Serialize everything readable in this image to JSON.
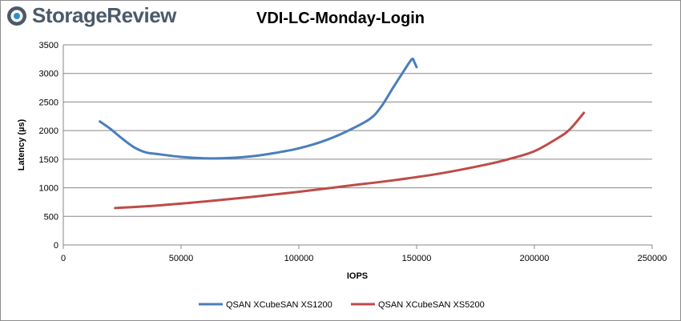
{
  "brand": {
    "name": "StorageReview"
  },
  "chart_data": {
    "type": "line",
    "title": "VDI-LC-Monday-Login",
    "xlabel": "IOPS",
    "ylabel": "Latency (µs)",
    "xlim": [
      0,
      250000
    ],
    "ylim": [
      0,
      3500
    ],
    "x_ticks": [
      "0",
      "50000",
      "100000",
      "150000",
      "200000",
      "250000"
    ],
    "y_ticks": [
      "0",
      "500",
      "1000",
      "1500",
      "2000",
      "2500",
      "3000",
      "3500"
    ],
    "grid": "horizontal",
    "legend_position": "bottom",
    "series": [
      {
        "name": "QSAN XCubeSAN XS1200",
        "color": "#4a7ebb",
        "x": [
          15500,
          20000,
          25000,
          30000,
          35000,
          40000,
          50000,
          60000,
          70000,
          80000,
          90000,
          100000,
          110000,
          120000,
          130000,
          135000,
          140000,
          145000,
          148000,
          149000,
          150000
        ],
        "y": [
          2160,
          2030,
          1860,
          1710,
          1620,
          1590,
          1540,
          1515,
          1520,
          1550,
          1610,
          1690,
          1810,
          1980,
          2200,
          2420,
          2750,
          3070,
          3250,
          3200,
          3110
        ]
      },
      {
        "name": "QSAN XCubeSAN XS5200",
        "color": "#be4b48",
        "x": [
          22000,
          40000,
          60000,
          80000,
          100000,
          120000,
          140000,
          160000,
          180000,
          190000,
          200000,
          210000,
          215000,
          220000,
          221000
        ],
        "y": [
          645,
          690,
          760,
          840,
          930,
          1030,
          1130,
          1250,
          1410,
          1510,
          1640,
          1870,
          2020,
          2260,
          2310
        ]
      }
    ]
  }
}
